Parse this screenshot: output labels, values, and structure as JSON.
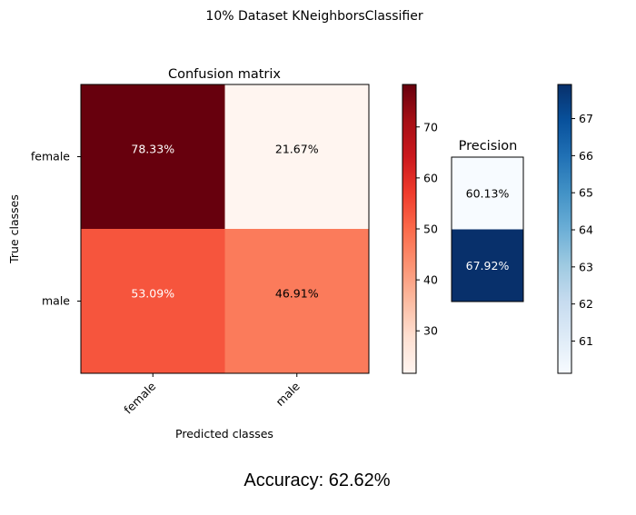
{
  "title": "10% Dataset KNeighborsClassifier",
  "accuracy_text": "Accuracy: 62.62%",
  "chart_data": [
    {
      "type": "heatmap",
      "title": "Confusion matrix",
      "xlabel": "Predicted classes",
      "ylabel": "True classes",
      "x_categories": [
        "female",
        "male"
      ],
      "y_categories": [
        "female",
        "male"
      ],
      "values": [
        [
          78.33,
          21.67
        ],
        [
          53.09,
          46.91
        ]
      ],
      "cell_labels": [
        [
          "78.33%",
          "21.67%"
        ],
        [
          "53.09%",
          "46.91%"
        ]
      ],
      "colormap": "Reds",
      "colorbar": {
        "range": [
          21.67,
          78.33
        ],
        "ticks": [
          30,
          40,
          50,
          60,
          70
        ]
      }
    },
    {
      "type": "heatmap",
      "title": "Precision",
      "y_categories": [
        "female",
        "male"
      ],
      "values": [
        60.13,
        67.92
      ],
      "cell_labels": [
        "60.13%",
        "67.92%"
      ],
      "colormap": "Blues",
      "colorbar": {
        "range": [
          60.13,
          67.92
        ],
        "ticks": [
          61,
          62,
          63,
          64,
          65,
          66,
          67
        ]
      }
    }
  ]
}
